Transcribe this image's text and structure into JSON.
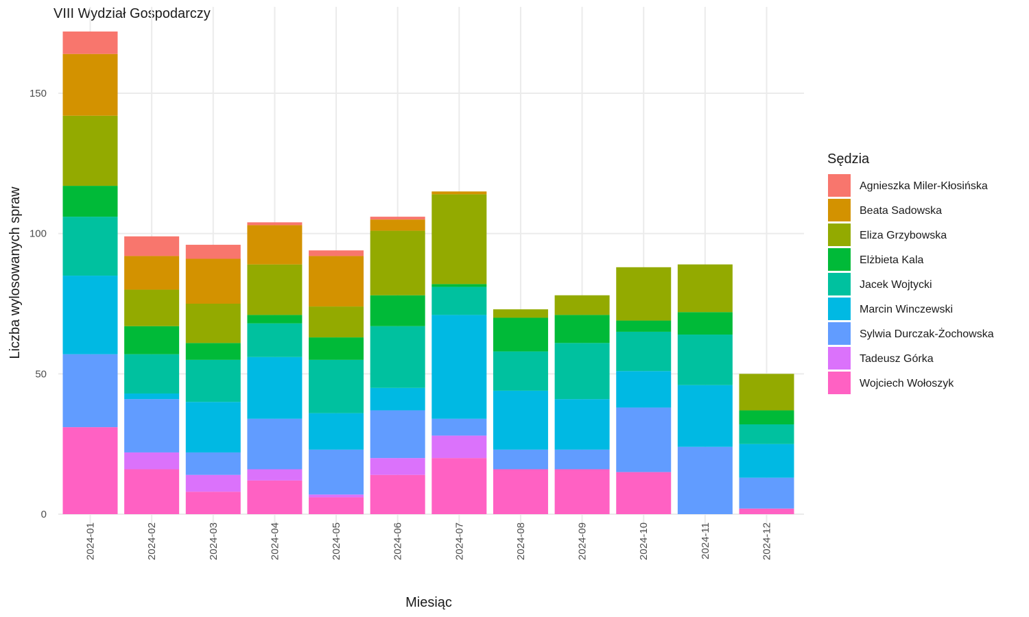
{
  "chart_data": {
    "type": "bar",
    "stacked": true,
    "title": "VIII Wydział Gospodarczy",
    "xlabel": "Miesiąc",
    "ylabel": "Liczba wylosowanych spraw",
    "ylim": [
      0,
      175
    ],
    "yticks": [
      0,
      50,
      100,
      150
    ],
    "grid": true,
    "legend_title": "Sędzia",
    "legend_position": "right",
    "categories": [
      "2024-01",
      "2024-02",
      "2024-03",
      "2024-04",
      "2024-05",
      "2024-06",
      "2024-07",
      "2024-08",
      "2024-09",
      "2024-10",
      "2024-11",
      "2024-12"
    ],
    "series": [
      {
        "name": "Wojciech Wołoszyk",
        "color": "#FF61C3",
        "values": [
          31,
          16,
          8,
          12,
          6,
          14,
          20,
          16,
          16,
          15,
          0,
          2
        ]
      },
      {
        "name": "Tadeusz Górka",
        "color": "#DB72FB",
        "values": [
          0,
          6,
          6,
          4,
          1,
          6,
          8,
          0,
          0,
          0,
          0,
          0
        ]
      },
      {
        "name": "Sylwia Durczak-Żochowska",
        "color": "#619CFF",
        "values": [
          26,
          19,
          8,
          18,
          16,
          17,
          6,
          7,
          7,
          23,
          24,
          11
        ]
      },
      {
        "name": "Marcin Winczewski",
        "color": "#00B9E3",
        "values": [
          28,
          2,
          18,
          22,
          13,
          8,
          37,
          21,
          18,
          13,
          22,
          12
        ]
      },
      {
        "name": "Jacek Wojtycki",
        "color": "#00C19F",
        "values": [
          21,
          14,
          15,
          12,
          19,
          22,
          10,
          14,
          20,
          14,
          18,
          7
        ]
      },
      {
        "name": "Elżbieta Kala",
        "color": "#00BA38",
        "values": [
          11,
          10,
          6,
          3,
          8,
          11,
          1,
          12,
          10,
          4,
          8,
          5
        ]
      },
      {
        "name": "Eliza Grzybowska",
        "color": "#93AA00",
        "values": [
          25,
          13,
          14,
          18,
          11,
          23,
          32,
          3,
          7,
          19,
          17,
          13
        ]
      },
      {
        "name": "Beata Sadowska",
        "color": "#D39200",
        "values": [
          22,
          12,
          16,
          14,
          18,
          4,
          1,
          0,
          0,
          0,
          0,
          0
        ]
      },
      {
        "name": "Agnieszka Miler-Kłosińska",
        "color": "#F8766D",
        "values": [
          8,
          7,
          5,
          1,
          2,
          1,
          0,
          0,
          0,
          0,
          0,
          0
        ]
      }
    ],
    "legend_order": [
      "Agnieszka Miler-Kłosińska",
      "Beata Sadowska",
      "Eliza Grzybowska",
      "Elżbieta Kala",
      "Jacek Wojtycki",
      "Marcin Winczewski",
      "Sylwia Durczak-Żochowska",
      "Tadeusz Górka",
      "Wojciech Wołoszyk"
    ]
  }
}
